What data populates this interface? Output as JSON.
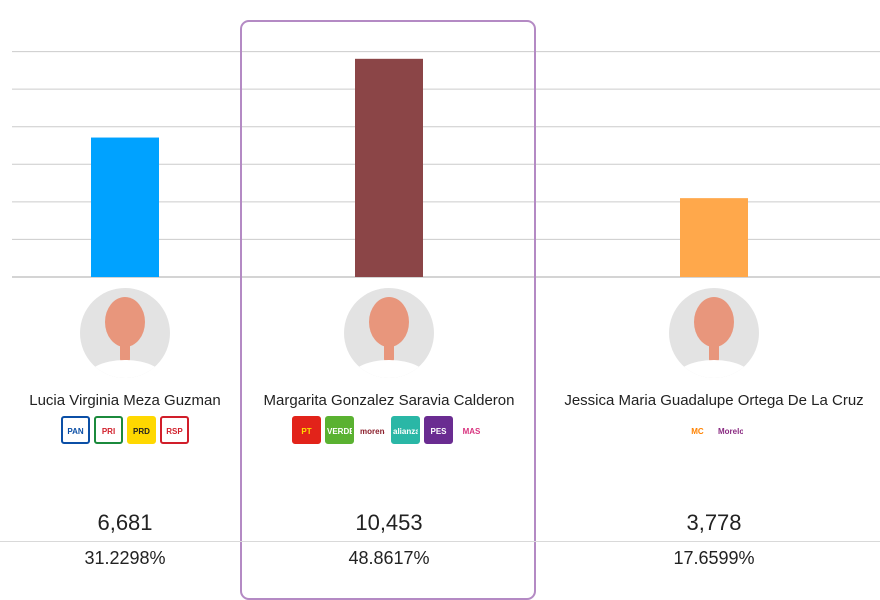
{
  "chart_data": {
    "type": "bar",
    "categories": [
      "Lucia Virginia Meza Guzman",
      "Margarita Gonzalez Saravia Calderon",
      "Jessica Maria Guadalupe Ortega De La Cruz"
    ],
    "values": [
      6681,
      10453,
      3778
    ],
    "ylim": [
      0,
      12600
    ],
    "grid": true,
    "colors": [
      "#00a2ff",
      "#8b4547",
      "#ffa84b"
    ]
  },
  "candidates": [
    {
      "name": "Lucia Virginia Meza Guzman",
      "votes": "6,681",
      "percent": "31.2298%",
      "parties": [
        {
          "label": "PAN",
          "bg": "#ffffff",
          "fg": "#0b4fa6",
          "border": "#0b4fa6"
        },
        {
          "label": "PRI",
          "bg": "#ffffff",
          "fg": "#d11e2a",
          "border": "#1b8a3c"
        },
        {
          "label": "PRD",
          "bg": "#ffd800",
          "fg": "#222222",
          "border": "#ffd800"
        },
        {
          "label": "RSP",
          "bg": "#ffffff",
          "fg": "#d11e2a",
          "border": "#d11e2a"
        }
      ]
    },
    {
      "name": "Margarita Gonzalez Saravia Calderon",
      "votes": "10,453",
      "percent": "48.8617%",
      "parties": [
        {
          "label": "PT",
          "bg": "#e2231a",
          "fg": "#ffdd00",
          "border": "#e2231a"
        },
        {
          "label": "VERDE",
          "bg": "#5ab231",
          "fg": "#ffffff",
          "border": "#5ab231"
        },
        {
          "label": "morena",
          "bg": "#ffffff",
          "fg": "#8b1f2c",
          "border": "#ffffff"
        },
        {
          "label": "alianza",
          "bg": "#2ab7a6",
          "fg": "#ffffff",
          "border": "#2ab7a6"
        },
        {
          "label": "PES",
          "bg": "#6a2c91",
          "fg": "#ffffff",
          "border": "#6a2c91"
        },
        {
          "label": "MAS",
          "bg": "#ffffff",
          "fg": "#d8347f",
          "border": "#ffffff"
        }
      ]
    },
    {
      "name": "Jessica Maria Guadalupe Ortega De La Cruz",
      "votes": "3,778",
      "percent": "17.6599%",
      "parties": [
        {
          "label": "MC",
          "bg": "#ffffff",
          "fg": "#ff8200",
          "border": "#ffffff"
        },
        {
          "label": "Morelos",
          "bg": "#ffffff",
          "fg": "#8a2b82",
          "border": "#ffffff"
        }
      ]
    }
  ]
}
